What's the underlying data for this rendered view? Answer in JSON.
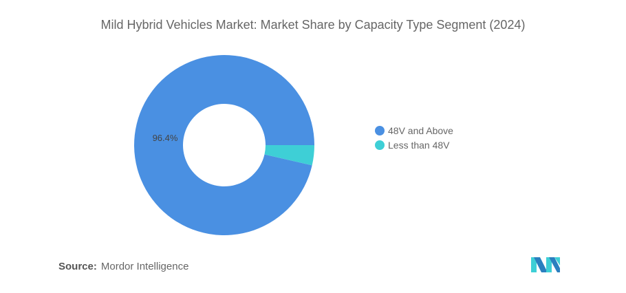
{
  "chart_data": {
    "type": "pie",
    "donut": true,
    "title": "Mild Hybrid Vehicles Market: Market Share by Capacity Type Segment (2024)",
    "categories": [
      "48V and Above",
      "Less than 48V"
    ],
    "values": [
      96.4,
      3.6
    ],
    "colors": [
      "#4a90e2",
      "#3ecfd6"
    ],
    "data_labels": [
      "96.4%",
      ""
    ],
    "legend_position": "right"
  },
  "source": {
    "label": "Source:",
    "text": "Mordor Intelligence"
  },
  "logo": {
    "name": "mordor-intelligence-logo",
    "colors": [
      "#2a7fbf",
      "#3ecfd6"
    ]
  }
}
